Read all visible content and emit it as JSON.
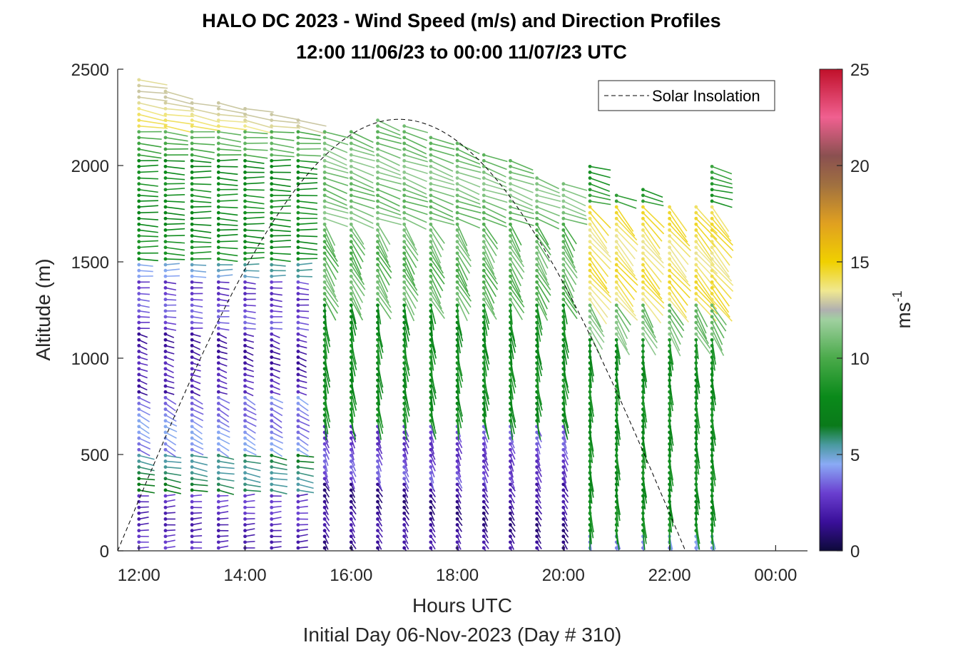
{
  "chart_data": {
    "type": "wind-barb-profile",
    "title": "HALO DC 2023 - Wind Speed (m/s) and Direction Profiles",
    "subtitle": "12:00 11/06/23 to 00:00 11/07/23  UTC",
    "xlabel": "Hours UTC",
    "xlabel2": "Initial Day 06-Nov-2023 (Day # 310)",
    "ylabel": "Altitude (m)",
    "colorbar_label": "ms",
    "colorbar_label_exp": "-1",
    "xlim": [
      11.6,
      24.6
    ],
    "ylim": [
      0,
      2500
    ],
    "cbar_lim": [
      0,
      25
    ],
    "x_ticks": [
      {
        "value": 12,
        "label": "12:00"
      },
      {
        "value": 14,
        "label": "14:00"
      },
      {
        "value": 16,
        "label": "16:00"
      },
      {
        "value": 18,
        "label": "18:00"
      },
      {
        "value": 20,
        "label": "20:00"
      },
      {
        "value": 22,
        "label": "22:00"
      },
      {
        "value": 24,
        "label": "00:00"
      }
    ],
    "y_ticks": [
      {
        "value": 0,
        "label": "0"
      },
      {
        "value": 500,
        "label": "500"
      },
      {
        "value": 1000,
        "label": "1000"
      },
      {
        "value": 1500,
        "label": "1500"
      },
      {
        "value": 2000,
        "label": "2000"
      },
      {
        "value": 2500,
        "label": "2500"
      }
    ],
    "cbar_ticks": [
      {
        "value": 0,
        "label": "0"
      },
      {
        "value": 5,
        "label": "5"
      },
      {
        "value": 10,
        "label": "10"
      },
      {
        "value": 15,
        "label": "15"
      },
      {
        "value": 20,
        "label": "20"
      },
      {
        "value": 25,
        "label": "25"
      }
    ],
    "colormap": [
      [
        0,
        "#0d0a3a"
      ],
      [
        1.5,
        "#3a0f9a"
      ],
      [
        3,
        "#6a3fd0"
      ],
      [
        4.5,
        "#8aaaf5"
      ],
      [
        5.5,
        "#4a9aa0"
      ],
      [
        6.5,
        "#0a7a1a"
      ],
      [
        8,
        "#0a8a1a"
      ],
      [
        10,
        "#4aaa4a"
      ],
      [
        12,
        "#a0d0a0"
      ],
      [
        12.5,
        "#b0b0b0"
      ],
      [
        13.5,
        "#f0e890"
      ],
      [
        15,
        "#f0d000"
      ],
      [
        17,
        "#e0a020"
      ],
      [
        19,
        "#a07040"
      ],
      [
        20.5,
        "#8a5050"
      ],
      [
        22.5,
        "#f06090"
      ],
      [
        25,
        "#c0102a"
      ]
    ],
    "legend": {
      "label": "Solar Insolation",
      "position": "top-right",
      "style": "dashed",
      "color": "#000000"
    },
    "solar_insolation": {
      "sunrise_hour": 11.6,
      "peak_hour": 16.9,
      "sunset_hour": 22.3,
      "peak_altitude_equiv": 2240
    },
    "profile_times": [
      12.0,
      12.5,
      13.0,
      13.5,
      14.0,
      14.5,
      15.0,
      15.5,
      16.0,
      16.5,
      17.0,
      17.5,
      18.0,
      18.5,
      19.0,
      19.5,
      20.0,
      20.5,
      21.0,
      21.5,
      22.0,
      22.5,
      22.8
    ],
    "profile_tops_m": [
      2450,
      2400,
      2350,
      2340,
      2300,
      2270,
      2250,
      2200,
      2180,
      2240,
      2210,
      2170,
      2120,
      2080,
      2040,
      1960,
      1920,
      2010,
      1870,
      1880,
      1800,
      1800,
      2000
    ],
    "profiles_start_m": 15,
    "level_spacing_m": 30,
    "wind_regimes": [
      {
        "from_hour": 12,
        "to_hour": 15.5,
        "layers": [
          {
            "top_m": 300,
            "speed_ms": 2.5,
            "direction_deg": 265
          },
          {
            "top_m": 520,
            "speed_ms": 6.0,
            "direction_deg": 280
          },
          {
            "top_m": 800,
            "speed_ms": 4.0,
            "direction_deg": 300
          },
          {
            "top_m": 1150,
            "speed_ms": 2.0,
            "direction_deg": 290
          },
          {
            "top_m": 1400,
            "speed_ms": 3.0,
            "direction_deg": 275
          },
          {
            "top_m": 1500,
            "speed_ms": 5.0,
            "direction_deg": 270
          },
          {
            "top_m": 2050,
            "speed_ms": 8.0,
            "direction_deg": 272
          },
          {
            "top_m": 2200,
            "speed_ms": 10.0,
            "direction_deg": 275
          },
          {
            "top_m": 2500,
            "speed_ms": 13.5,
            "direction_deg": 280
          }
        ]
      },
      {
        "from_hour": 15.5,
        "to_hour": 20.5,
        "layers": [
          {
            "top_m": 350,
            "speed_ms": 1.5,
            "direction_deg": 330
          },
          {
            "top_m": 650,
            "speed_ms": 3.0,
            "direction_deg": 340
          },
          {
            "top_m": 1300,
            "speed_ms": 8.0,
            "direction_deg": 350
          },
          {
            "top_m": 1700,
            "speed_ms": 10.5,
            "direction_deg": 330
          },
          {
            "top_m": 2500,
            "speed_ms": 11.0,
            "direction_deg": 290
          }
        ]
      },
      {
        "from_hour": 20.5,
        "to_hour": 23,
        "layers": [
          {
            "top_m": 100,
            "speed_ms": 4.5,
            "direction_deg": 350
          },
          {
            "top_m": 1100,
            "speed_ms": 8.0,
            "direction_deg": 355
          },
          {
            "top_m": 1300,
            "speed_ms": 11.0,
            "direction_deg": 330
          },
          {
            "top_m": 1800,
            "speed_ms": 14.0,
            "direction_deg": 320
          },
          {
            "top_m": 2500,
            "speed_ms": 9.0,
            "direction_deg": 285
          }
        ]
      }
    ]
  }
}
